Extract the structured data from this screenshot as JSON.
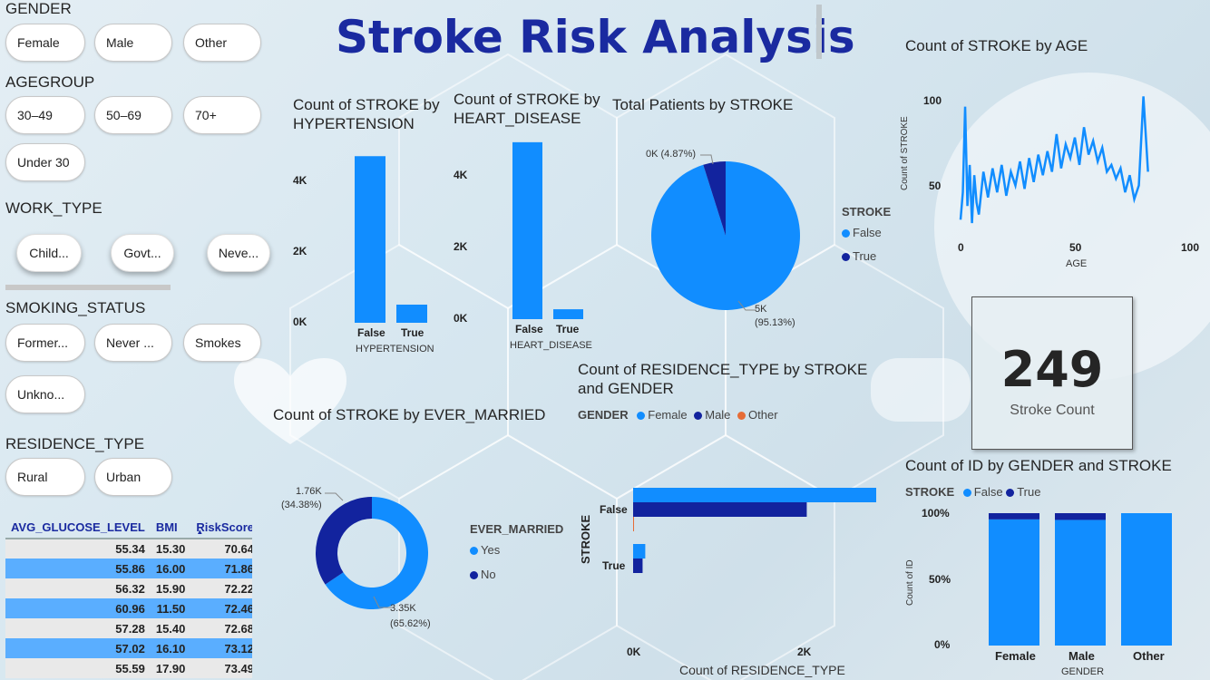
{
  "title": "Stroke Risk Analysis",
  "colors": {
    "false_blue": "#118dff",
    "true_navy": "#12239e",
    "other_orange": "#e66c37",
    "title": "#1a2aa0"
  },
  "filters": {
    "gender": {
      "label": "GENDER",
      "options": [
        "Female",
        "Male",
        "Other"
      ]
    },
    "agegroup": {
      "label": "AGEGROUP",
      "options": [
        "30–49",
        "50–69",
        "70+",
        "Under 30"
      ]
    },
    "work_type": {
      "label": "WORK_TYPE",
      "options": [
        "Child...",
        "Govt...",
        "Neve..."
      ]
    },
    "smoking": {
      "label": "SMOKING_STATUS",
      "options": [
        "Former...",
        "Never ...",
        "Smokes",
        "Unkno..."
      ]
    },
    "residence": {
      "label": "RESIDENCE_TYPE",
      "options": [
        "Rural",
        "Urban"
      ]
    }
  },
  "table": {
    "headers": [
      "AVG_GLUCOSE_LEVEL",
      "BMI",
      "RiskScore"
    ],
    "rows": [
      [
        "55.34",
        "15.30",
        "70.64"
      ],
      [
        "55.86",
        "16.00",
        "71.86"
      ],
      [
        "56.32",
        "15.90",
        "72.22"
      ],
      [
        "60.96",
        "11.50",
        "72.46"
      ],
      [
        "57.28",
        "15.40",
        "72.68"
      ],
      [
        "57.02",
        "16.10",
        "73.12"
      ],
      [
        "55.59",
        "17.90",
        "73.49"
      ]
    ]
  },
  "hyper": {
    "title": "Count of STROKE by HYPERTENSION",
    "ticks": [
      "4K",
      "2K",
      "0K"
    ],
    "cats": [
      "False",
      "True"
    ],
    "xlabel": "HYPERTENSION"
  },
  "heart": {
    "title": "Count of STROKE by HEART_DISEASE",
    "ticks": [
      "4K",
      "2K",
      "0K"
    ],
    "cats": [
      "False",
      "True"
    ],
    "xlabel": "HEART_DISEASE"
  },
  "pie": {
    "title": "Total Patients by STROKE",
    "legend_title": "STROKE",
    "legend": [
      "False",
      "True"
    ],
    "label_small": "0K (4.87%)",
    "label_big_1": "5K",
    "label_big_2": "(95.13%)"
  },
  "age": {
    "title": "Count of STROKE by AGE",
    "yticks": [
      "100",
      "50"
    ],
    "xticks": [
      "0",
      "50",
      "100"
    ],
    "ylabel": "Count of STROKE",
    "xlabel": "AGE"
  },
  "kpi": {
    "value": "249",
    "label": "Stroke Count"
  },
  "residence_chart": {
    "title": "Count of RESIDENCE_TYPE by STROKE and GENDER",
    "legend_title": "GENDER",
    "legend": [
      "Female",
      "Male",
      "Other"
    ],
    "cats": [
      "False",
      "True"
    ],
    "ylabel": "STROKE",
    "xticks": [
      "0K",
      "2K"
    ],
    "xlabel": "Count of RESIDENCE_TYPE"
  },
  "married": {
    "title": "Count of STROKE by EVER_MARRIED",
    "legend_title": "EVER_MARRIED",
    "legend": [
      "Yes",
      "No"
    ],
    "lbl_no_1": "1.76K",
    "lbl_no_2": "(34.38%)",
    "lbl_yes_1": "3.35K",
    "lbl_yes_2": "(65.62%)"
  },
  "gender_chart": {
    "title": "Count of ID by GENDER and STROKE",
    "legend_title": "STROKE",
    "legend": [
      "False",
      "True"
    ],
    "yticks": [
      "100%",
      "50%",
      "0%"
    ],
    "cats": [
      "Female",
      "Male",
      "Other"
    ],
    "ylabel": "Count of ID",
    "xlabel": "GENDER"
  },
  "chart_data": [
    {
      "type": "bar",
      "title": "Count of STROKE by HYPERTENSION",
      "categories": [
        "False",
        "True"
      ],
      "values": [
        4500,
        490
      ],
      "xlabel": "HYPERTENSION",
      "ylim": [
        0,
        4800
      ]
    },
    {
      "type": "bar",
      "title": "Count of STROKE by HEART_DISEASE",
      "categories": [
        "False",
        "True"
      ],
      "values": [
        4830,
        270
      ],
      "xlabel": "HEART_DISEASE",
      "ylim": [
        0,
        5000
      ]
    },
    {
      "type": "pie",
      "title": "Total Patients by STROKE",
      "categories": [
        "False",
        "True"
      ],
      "values": [
        95.13,
        4.87
      ]
    },
    {
      "type": "line",
      "title": "Count of STROKE by AGE",
      "xlabel": "AGE",
      "ylabel": "Count of STROKE",
      "xlim": [
        0,
        100
      ],
      "ylim": [
        20,
        110
      ],
      "x": [
        0,
        1,
        2,
        3,
        4,
        5,
        6,
        7,
        8,
        10,
        12,
        14,
        16,
        18,
        20,
        22,
        24,
        26,
        28,
        30,
        32,
        34,
        36,
        38,
        40,
        42,
        44,
        46,
        48,
        50,
        52,
        54,
        56,
        58,
        60,
        62,
        64,
        66,
        68,
        70,
        72,
        74,
        76,
        78,
        80,
        82
      ],
      "y": [
        32,
        48,
        98,
        40,
        64,
        30,
        58,
        42,
        35,
        60,
        45,
        62,
        48,
        64,
        46,
        60,
        52,
        66,
        50,
        68,
        54,
        70,
        58,
        72,
        60,
        82,
        62,
        76,
        68,
        80,
        64,
        86,
        70,
        78,
        66,
        74,
        60,
        64,
        56,
        62,
        48,
        58,
        44,
        52,
        104,
        60
      ]
    },
    {
      "type": "bar",
      "title": "Count of RESIDENCE_TYPE by STROKE and GENDER",
      "categories": [
        "False",
        "True"
      ],
      "series": [
        {
          "name": "Female",
          "values": [
            2800,
            140
          ]
        },
        {
          "name": "Male",
          "values": [
            2000,
            109
          ]
        },
        {
          "name": "Other",
          "values": [
            1,
            0
          ]
        }
      ],
      "xlabel": "Count of RESIDENCE_TYPE",
      "ylabel": "STROKE"
    },
    {
      "type": "pie",
      "title": "Count of STROKE by EVER_MARRIED",
      "categories": [
        "Yes",
        "No"
      ],
      "values": [
        3350,
        1760
      ]
    },
    {
      "type": "bar",
      "title": "Count of ID by GENDER and STROKE",
      "categories": [
        "Female",
        "Male",
        "Other"
      ],
      "series": [
        {
          "name": "False",
          "values": [
            95.3,
            94.9,
            100
          ]
        },
        {
          "name": "True",
          "values": [
            4.7,
            5.1,
            0
          ]
        }
      ],
      "xlabel": "GENDER",
      "ylabel": "Count of ID",
      "ylim": [
        0,
        100
      ]
    }
  ]
}
